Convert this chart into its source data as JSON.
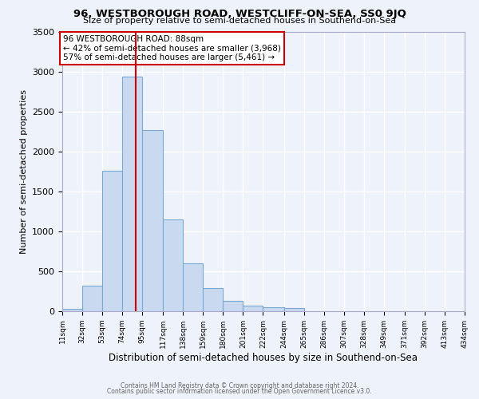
{
  "title": "96, WESTBOROUGH ROAD, WESTCLIFF-ON-SEA, SS0 9JQ",
  "subtitle": "Size of property relative to semi-detached houses in Southend-on-Sea",
  "xlabel": "Distribution of semi-detached houses by size in Southend-on-Sea",
  "ylabel": "Number of semi-detached properties",
  "bin_labels": [
    "11sqm",
    "32sqm",
    "53sqm",
    "74sqm",
    "95sqm",
    "117sqm",
    "138sqm",
    "159sqm",
    "180sqm",
    "201sqm",
    "222sqm",
    "244sqm",
    "265sqm",
    "286sqm",
    "307sqm",
    "328sqm",
    "349sqm",
    "371sqm",
    "392sqm",
    "413sqm",
    "434sqm"
  ],
  "bar_values": [
    30,
    325,
    1760,
    2940,
    2270,
    1155,
    600,
    295,
    135,
    75,
    55,
    40,
    0,
    0,
    0,
    0,
    0,
    0,
    0,
    0
  ],
  "bar_color": "#c9d9f0",
  "bar_edge_color": "#7aaad4",
  "marker_value": 88,
  "pct_smaller": 42,
  "count_smaller": 3968,
  "pct_larger": 57,
  "count_larger": 5461,
  "ylim": [
    0,
    3500
  ],
  "bin_edges": [
    11,
    32,
    53,
    74,
    95,
    117,
    138,
    159,
    180,
    201,
    222,
    244,
    265,
    286,
    307,
    328,
    349,
    371,
    392,
    413,
    434
  ],
  "footer_line1": "Contains HM Land Registry data © Crown copyright and database right 2024.",
  "footer_line2": "Contains public sector information licensed under the Open Government Licence v3.0.",
  "background_color": "#eef2fa",
  "grid_color": "#ffffff",
  "annotation_box_color": "#ffffff",
  "annotation_box_edge": "#cc0000",
  "red_line_color": "#cc0000"
}
